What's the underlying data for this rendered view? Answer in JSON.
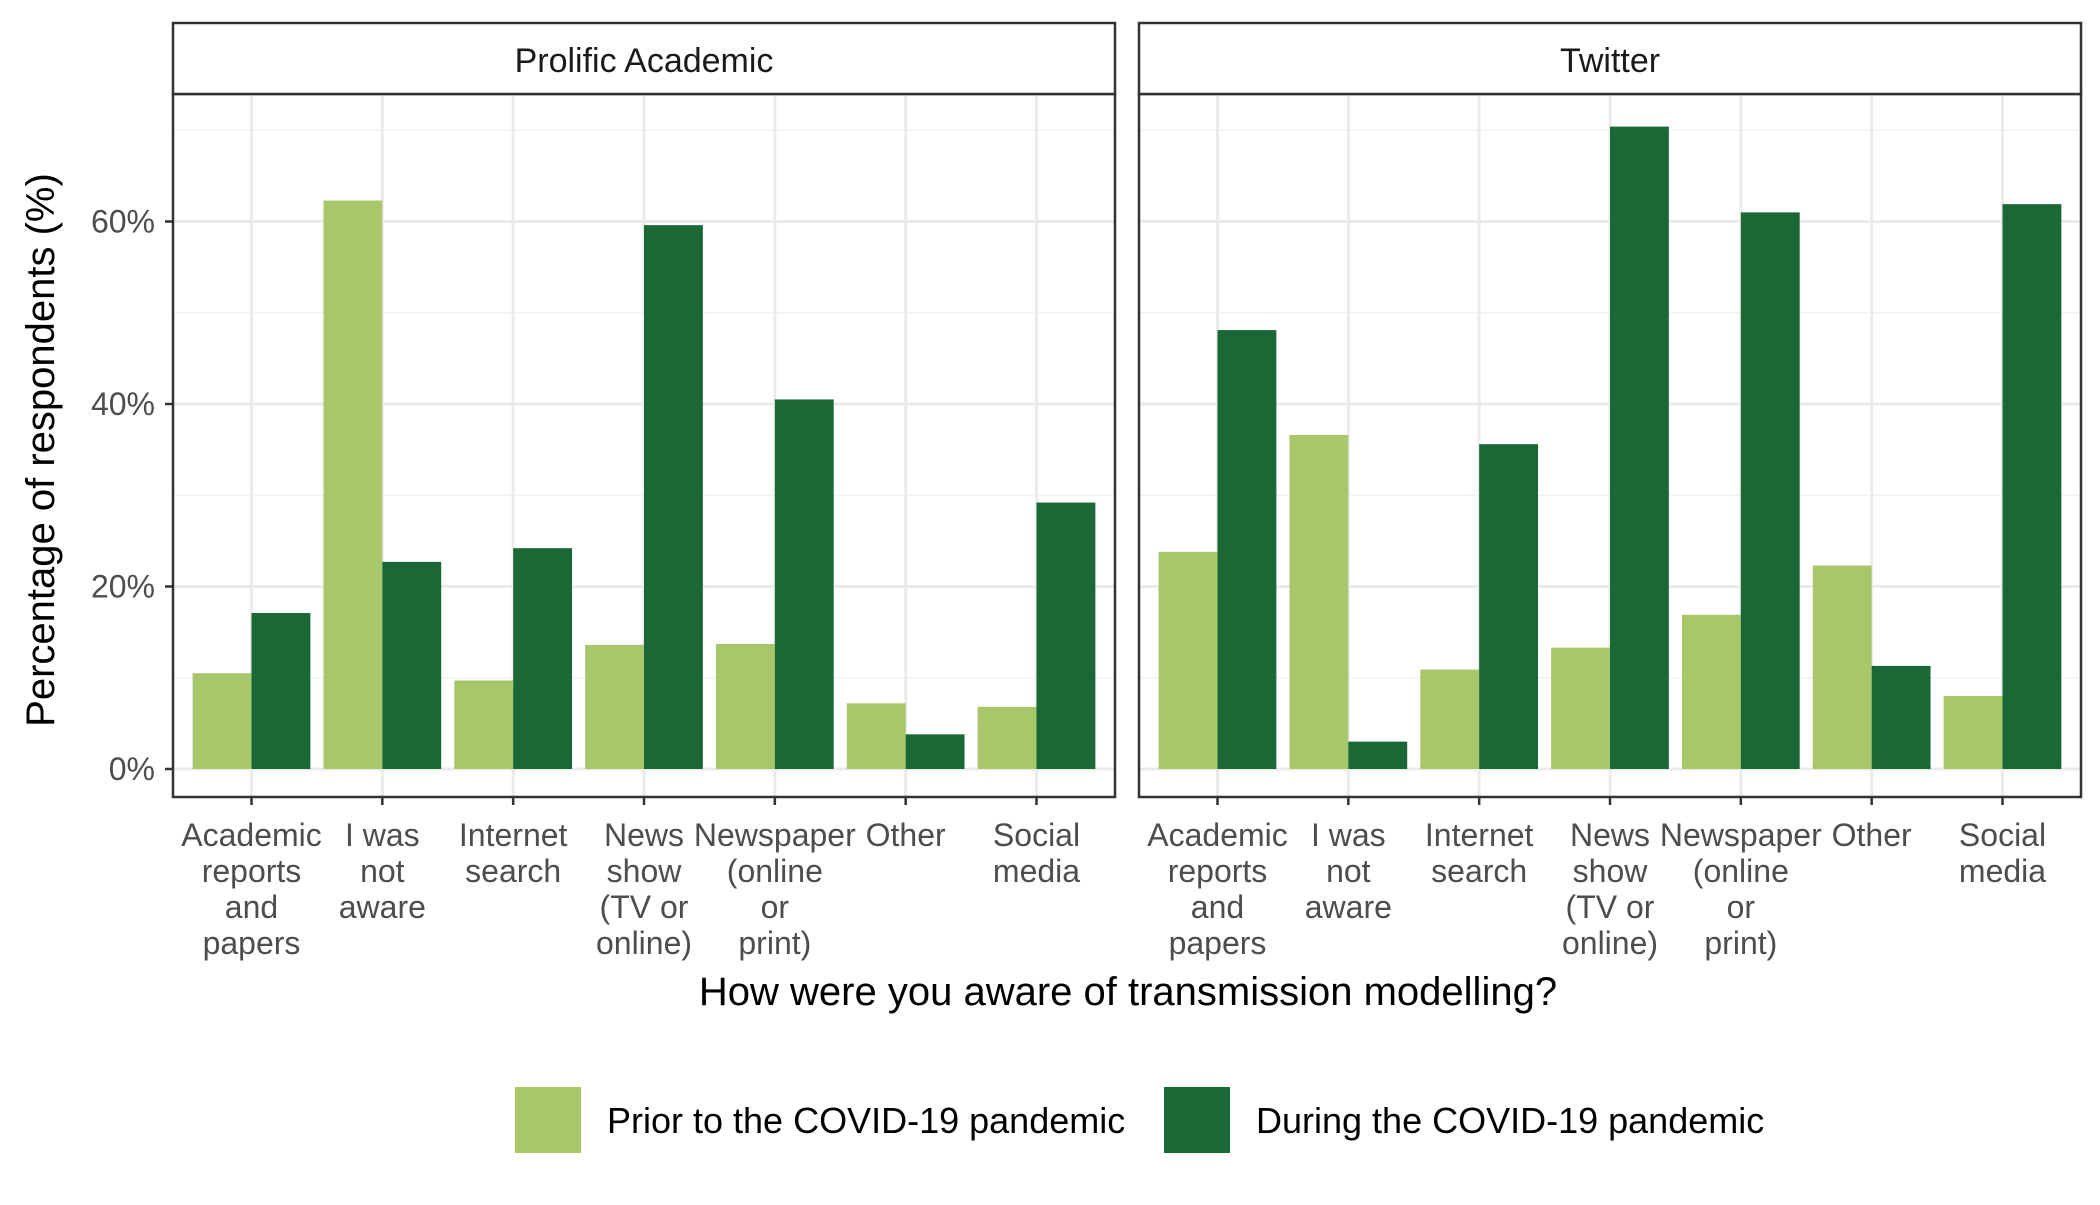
{
  "chart_data": {
    "type": "bar",
    "x_axis_label": "How were you aware of transmission modelling?",
    "y_axis_label": "Percentage of respondents (%)",
    "y_ticks": [
      "0%",
      "20%",
      "40%",
      "60%"
    ],
    "y_range": [
      0,
      75
    ],
    "categories": [
      [
        "Academic",
        "reports",
        "and",
        "papers"
      ],
      [
        "I was",
        "not",
        "aware"
      ],
      [
        "Internet",
        "search"
      ],
      [
        "News",
        "show",
        "(TV or",
        "online)"
      ],
      [
        "Newspaper",
        "(online",
        "or",
        "print)"
      ],
      [
        "Other"
      ],
      [
        "Social",
        "media"
      ]
    ],
    "series_names": [
      "Prior to the COVID-19 pandemic",
      "During the COVID-19 pandemic"
    ],
    "series_colors": [
      "#a8c76b",
      "#1b6837"
    ],
    "panels": [
      {
        "title": "Prolific Academic",
        "series": [
          {
            "name": "Prior to the COVID-19 pandemic",
            "values": [
              10.5,
              62.3,
              9.7,
              13.6,
              13.7,
              7.2,
              6.8
            ]
          },
          {
            "name": "During the COVID-19 pandemic",
            "values": [
              17.1,
              22.7,
              24.2,
              59.6,
              40.5,
              3.8,
              29.2
            ]
          }
        ]
      },
      {
        "title": "Twitter",
        "series": [
          {
            "name": "Prior to the COVID-19 pandemic",
            "values": [
              23.8,
              36.6,
              10.9,
              13.3,
              16.9,
              22.3,
              8.0
            ]
          },
          {
            "name": "During the COVID-19 pandemic",
            "values": [
              48.1,
              3.0,
              35.6,
              70.4,
              61.0,
              11.3,
              61.9
            ]
          }
        ]
      }
    ],
    "grid": true,
    "legend_position": "bottom"
  }
}
